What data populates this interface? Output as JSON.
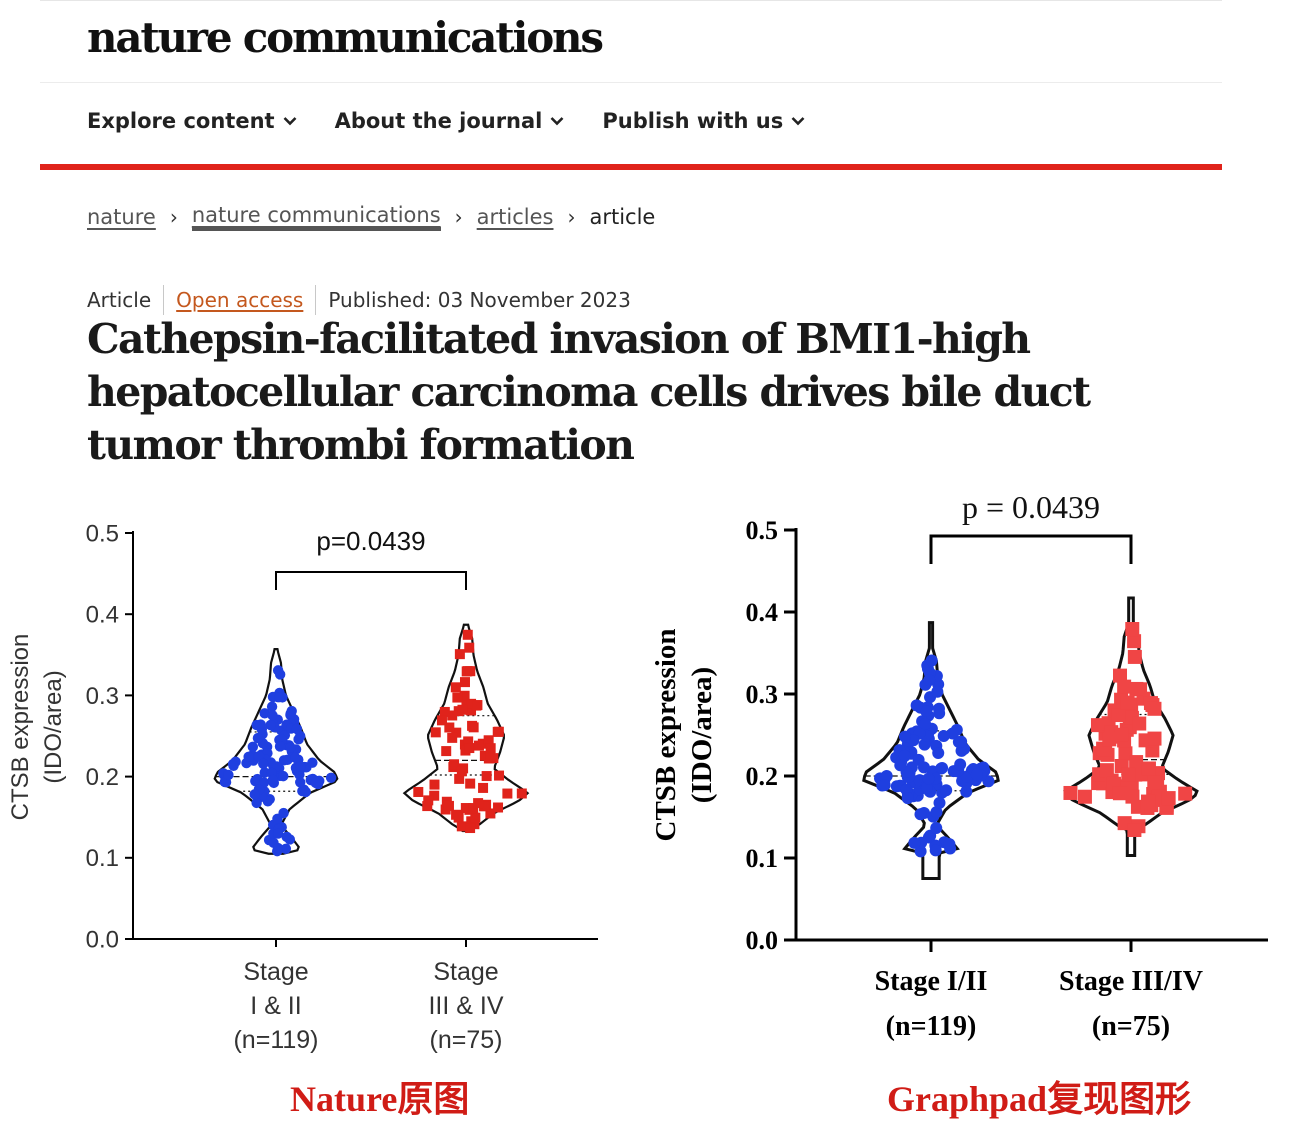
{
  "site": {
    "brand": "nature communications",
    "nav": [
      {
        "label": "Explore content",
        "chevron": "⌄"
      },
      {
        "label": "About the journal",
        "chevron": "⌄"
      },
      {
        "label": "Publish with us",
        "chevron": "⌄"
      }
    ],
    "accent_color": "#e0231b",
    "breadcrumbs": [
      "nature",
      "nature communications",
      "articles",
      "article"
    ],
    "breadcrumb_separator": "›",
    "article": {
      "type": "Article",
      "access": "Open access",
      "published": "Published: 03 November 2023",
      "title": "Cathepsin-facilitated invasion of BMI1-high hepatocellular carcinoma cells drives bile duct tumor thrombi formation"
    }
  },
  "captions": {
    "left": "Nature原图",
    "right": "Graphpad复现图形"
  },
  "chart_data": [
    {
      "type": "violin",
      "panel": "Nature original",
      "ylabel": [
        "CTSB expression",
        "(IDO/area)"
      ],
      "ylim": [
        0,
        0.5
      ],
      "yticks": [
        "0.0",
        "0.1",
        "0.2",
        "0.3",
        "0.4",
        "0.5"
      ],
      "categories": [
        {
          "lines": [
            "Stage",
            "I & II",
            "(n=119)"
          ]
        },
        {
          "lines": [
            "Stage",
            "III & IV",
            "(n=75)"
          ]
        }
      ],
      "annotation": "p=0.0439",
      "series": [
        {
          "color": "#1f3fe0",
          "marker": "circle",
          "n": 119,
          "median": 0.2,
          "min": 0.105,
          "max": 0.357
        },
        {
          "color": "#e0231b",
          "marker": "square",
          "n": 75,
          "median": 0.22,
          "min": 0.133,
          "max": 0.387
        }
      ]
    },
    {
      "type": "violin",
      "panel": "Graphpad reproduction",
      "ylabel": [
        "CTSB expression",
        "(IDO/area)"
      ],
      "ylim": [
        0,
        0.5
      ],
      "yticks": [
        "0.0",
        "0.1",
        "0.2",
        "0.3",
        "0.4",
        "0.5"
      ],
      "categories": [
        {
          "lines": [
            "Stage I/II",
            "(n=119)"
          ]
        },
        {
          "lines": [
            "Stage III/IV",
            "(n=75)"
          ]
        }
      ],
      "annotation": "p = 0.0439",
      "series": [
        {
          "color": "#1f3fe0",
          "marker": "circle",
          "n": 119,
          "median": 0.2,
          "min": 0.105,
          "max": 0.357
        },
        {
          "color": "#f04545",
          "marker": "square",
          "n": 75,
          "median": 0.22,
          "min": 0.133,
          "max": 0.387
        }
      ]
    }
  ]
}
